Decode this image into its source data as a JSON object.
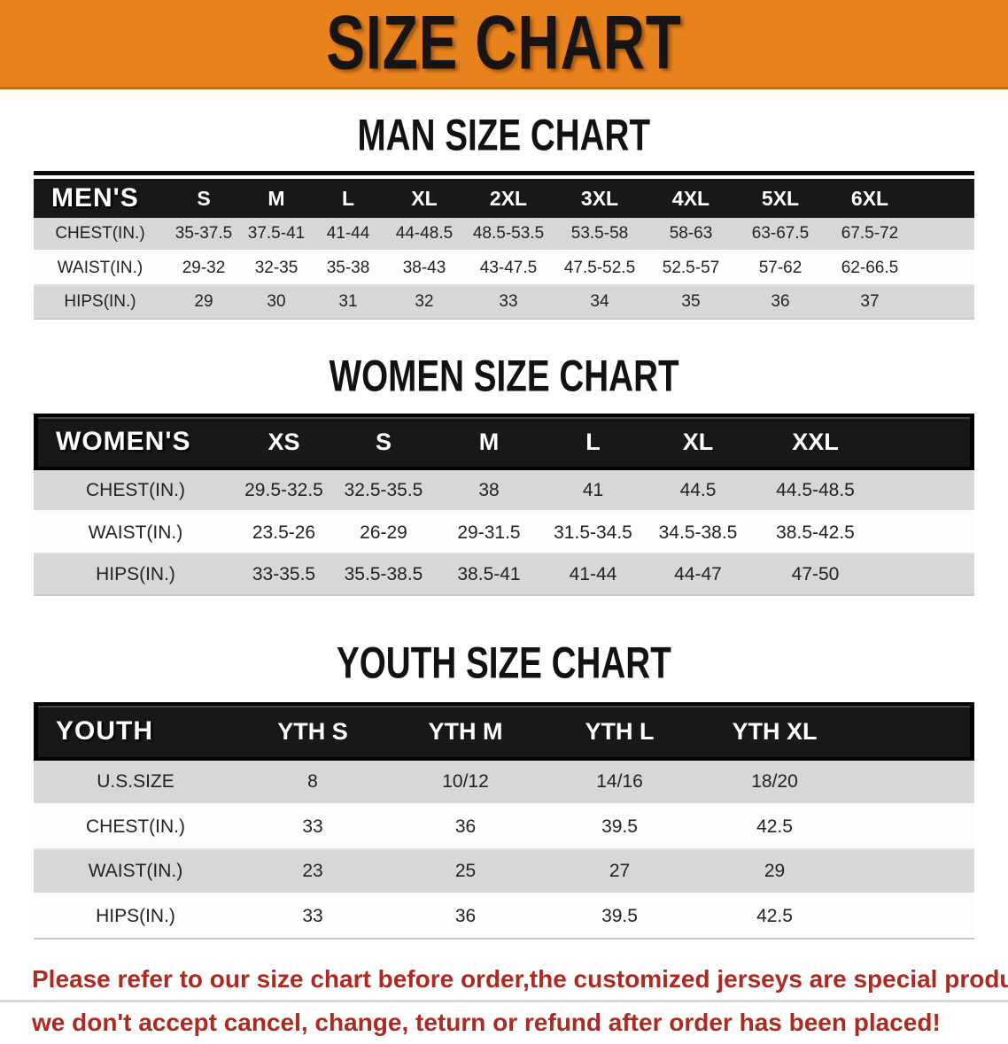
{
  "banner": {
    "title": "SIZE CHART",
    "bg_color": "#e8821c",
    "text_color": "#181411"
  },
  "sections": [
    {
      "id": "men",
      "title": "MAN SIZE CHART",
      "table": {
        "group_label": "MEN'S",
        "columns": [
          "S",
          "M",
          "L",
          "XL",
          "2XL",
          "3XL",
          "4XL",
          "5XL",
          "6XL"
        ],
        "rows": [
          {
            "label": "CHEST(IN.)",
            "values": [
              "35-37.5",
              "37.5-41",
              "41-44",
              "44-48.5",
              "48.5-53.5",
              "53.5-58",
              "58-63",
              "63-67.5",
              "67.5-72"
            ]
          },
          {
            "label": "WAIST(IN.)",
            "values": [
              "29-32",
              "32-35",
              "35-38",
              "38-43",
              "43-47.5",
              "47.5-52.5",
              "52.5-57",
              "57-62",
              "62-66.5"
            ]
          },
          {
            "label": "HIPS(IN.)",
            "values": [
              "29",
              "30",
              "31",
              "32",
              "33",
              "34",
              "35",
              "36",
              "37"
            ]
          }
        ]
      }
    },
    {
      "id": "women",
      "title": "WOMEN SIZE CHART",
      "table": {
        "group_label": "WOMEN'S",
        "columns": [
          "XS",
          "S",
          "M",
          "L",
          "XL",
          "XXL"
        ],
        "rows": [
          {
            "label": "CHEST(IN.)",
            "values": [
              "29.5-32.5",
              "32.5-35.5",
              "38",
              "41",
              "44.5",
              "44.5-48.5"
            ]
          },
          {
            "label": "WAIST(IN.)",
            "values": [
              "23.5-26",
              "26-29",
              "29-31.5",
              "31.5-34.5",
              "34.5-38.5",
              "38.5-42.5"
            ]
          },
          {
            "label": "HIPS(IN.)",
            "values": [
              "33-35.5",
              "35.5-38.5",
              "38.5-41",
              "41-44",
              "44-47",
              "47-50"
            ]
          }
        ]
      }
    },
    {
      "id": "youth",
      "title": "YOUTH SIZE CHART",
      "table": {
        "group_label": "YOUTH",
        "columns": [
          "YTH S",
          "YTH M",
          "YTH L",
          "YTH XL"
        ],
        "rows": [
          {
            "label": "U.S.SIZE",
            "values": [
              "8",
              "10/12",
              "14/16",
              "18/20"
            ]
          },
          {
            "label": "CHEST(IN.)",
            "values": [
              "33",
              "36",
              "39.5",
              "42.5"
            ]
          },
          {
            "label": "WAIST(IN.)",
            "values": [
              "23",
              "25",
              "27",
              "29"
            ]
          },
          {
            "label": "HIPS(IN.)",
            "values": [
              "33",
              "36",
              "39.5",
              "42.5"
            ]
          }
        ]
      }
    }
  ],
  "disclaimer": {
    "line1": "Please refer to our size chart before order,the customized jerseys are special products,",
    "line2": "we don't accept cancel, change, teturn or refund after order has been placed!",
    "color": "#ac2a22"
  }
}
